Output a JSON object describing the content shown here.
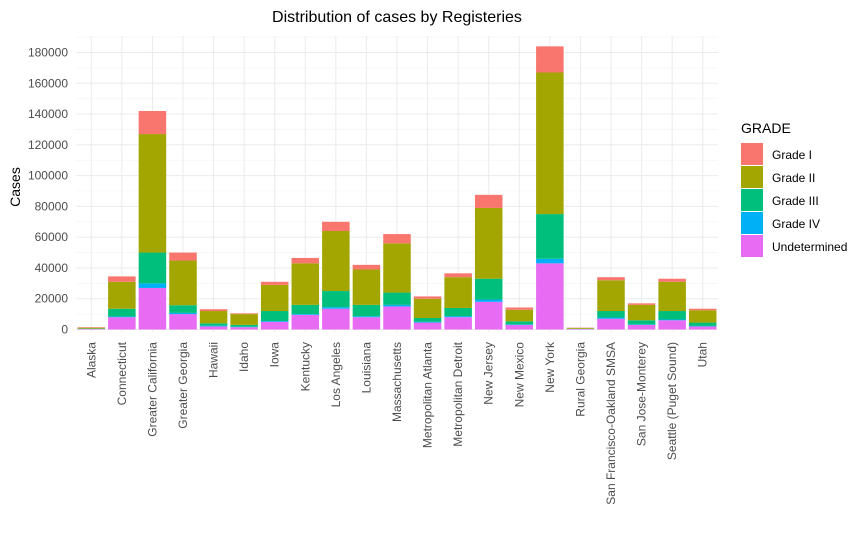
{
  "chart_data": {
    "type": "bar",
    "stacked": true,
    "title": "Distribution of cases by Registeries",
    "xlabel": "",
    "ylabel": "Cases",
    "ylim": [
      0,
      190000
    ],
    "yticks": [
      0,
      20000,
      40000,
      60000,
      80000,
      100000,
      120000,
      140000,
      160000,
      180000
    ],
    "grid": true,
    "legend_position": "right",
    "legend_title": "GRADE",
    "categories": [
      "Alaska",
      "Connecticut",
      "Greater California",
      "Greater Georgia",
      "Hawaii",
      "Idaho",
      "Iowa",
      "Kentucky",
      "Los Angeles",
      "Louisiana",
      "Massachusetts",
      "Metropolitan Atlanta",
      "Metropolitan Detroit",
      "New Jersey",
      "New Mexico",
      "New York",
      "Rural Georgia",
      "San Francisco-Oakland SMSA",
      "San Jose-Monterey",
      "Seattle (Puget Sound)",
      "Utah"
    ],
    "series": [
      {
        "name": "Undetermined",
        "color": "#E76BF3",
        "values": [
          300,
          8000,
          27000,
          10000,
          2000,
          1500,
          5000,
          9500,
          13500,
          8000,
          15000,
          4500,
          8000,
          18000,
          3000,
          43000,
          300,
          7000,
          3000,
          6000,
          2000
        ]
      },
      {
        "name": "Grade IV",
        "color": "#00B0F6",
        "values": [
          100,
          500,
          3000,
          800,
          500,
          300,
          500,
          500,
          1000,
          600,
          1000,
          500,
          700,
          1500,
          300,
          3000,
          100,
          800,
          300,
          500,
          300
        ]
      },
      {
        "name": "Grade III",
        "color": "#00BF7D",
        "values": [
          200,
          5000,
          20000,
          5000,
          1500,
          1200,
          6500,
          6000,
          10500,
          7400,
          8000,
          2500,
          5300,
          13500,
          2000,
          29000,
          100,
          4200,
          2700,
          5500,
          2200
        ]
      },
      {
        "name": "Grade II",
        "color": "#A3A500",
        "values": [
          600,
          17500,
          77000,
          29000,
          8000,
          7000,
          17000,
          27000,
          39000,
          23000,
          32000,
          12500,
          20000,
          46000,
          7500,
          92000,
          500,
          20000,
          10000,
          19000,
          8000
        ]
      },
      {
        "name": "Grade I",
        "color": "#F8766D",
        "values": [
          300,
          3500,
          15000,
          5200,
          1200,
          500,
          2000,
          3500,
          6000,
          3000,
          6000,
          1500,
          2500,
          8500,
          1500,
          17000,
          200,
          2000,
          1000,
          2000,
          1000
        ]
      }
    ],
    "legend_order": [
      "Grade I",
      "Grade II",
      "Grade III",
      "Grade IV",
      "Undetermined"
    ]
  }
}
